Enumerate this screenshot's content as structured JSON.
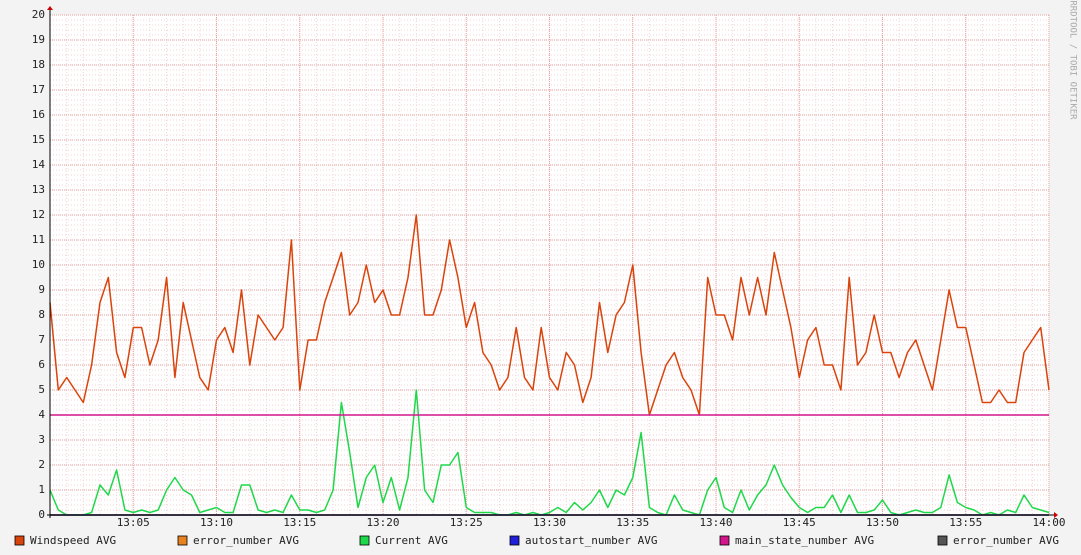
{
  "chart_data": {
    "type": "line",
    "watermark": "RRDTOOL / TOBI OETIKER",
    "xlim": [
      0,
      60
    ],
    "xticks": [
      {
        "value": 5,
        "label": "13:05"
      },
      {
        "value": 10,
        "label": "13:10"
      },
      {
        "value": 15,
        "label": "13:15"
      },
      {
        "value": 20,
        "label": "13:20"
      },
      {
        "value": 25,
        "label": "13:25"
      },
      {
        "value": 30,
        "label": "13:30"
      },
      {
        "value": 35,
        "label": "13:35"
      },
      {
        "value": 40,
        "label": "13:40"
      },
      {
        "value": 45,
        "label": "13:45"
      },
      {
        "value": 50,
        "label": "13:50"
      },
      {
        "value": 55,
        "label": "13:55"
      },
      {
        "value": 60,
        "label": "14:00"
      }
    ],
    "ylim": [
      0,
      20
    ],
    "yticks": [
      0,
      1,
      2,
      3,
      4,
      5,
      6,
      7,
      8,
      9,
      10,
      11,
      12,
      13,
      14,
      15,
      16,
      17,
      18,
      19,
      20
    ],
    "grid": true,
    "x": [
      0,
      0.5,
      1,
      1.5,
      2,
      2.5,
      3,
      3.5,
      4,
      4.5,
      5,
      5.5,
      6,
      6.5,
      7,
      7.5,
      8,
      8.5,
      9,
      9.5,
      10,
      10.5,
      11,
      11.5,
      12,
      12.5,
      13,
      13.5,
      14,
      14.5,
      15,
      15.5,
      16,
      16.5,
      17,
      17.5,
      18,
      18.5,
      19,
      19.5,
      20,
      20.5,
      21,
      21.5,
      22,
      22.5,
      23,
      23.5,
      24,
      24.5,
      25,
      25.5,
      26,
      26.5,
      27,
      27.5,
      28,
      28.5,
      29,
      29.5,
      30,
      30.5,
      31,
      31.5,
      32,
      32.5,
      33,
      33.5,
      34,
      34.5,
      35,
      35.5,
      36,
      36.5,
      37,
      37.5,
      38,
      38.5,
      39,
      39.5,
      40,
      40.5,
      41,
      41.5,
      42,
      42.5,
      43,
      43.5,
      44,
      44.5,
      45,
      45.5,
      46,
      46.5,
      47,
      47.5,
      48,
      48.5,
      49,
      49.5,
      50,
      50.5,
      51,
      51.5,
      52,
      52.5,
      53,
      53.5,
      54,
      54.5,
      55,
      55.5,
      56,
      56.5,
      57,
      57.5,
      58,
      58.5,
      59,
      59.5,
      60
    ],
    "series": [
      {
        "name": "Windspeed AVG",
        "color": "#d9440c",
        "values": [
          8.5,
          5,
          5.5,
          5,
          4.5,
          6,
          8.5,
          9.5,
          6.5,
          5.5,
          7.5,
          7.5,
          6,
          7,
          9.5,
          5.5,
          8.5,
          7,
          5.5,
          5,
          7,
          7.5,
          6.5,
          9,
          6,
          8,
          7.5,
          7,
          7.5,
          11,
          5,
          7,
          7,
          8.5,
          9.5,
          10.5,
          8,
          8.5,
          10,
          8.5,
          9,
          8,
          8,
          9.5,
          12,
          8,
          8,
          9,
          11,
          9.5,
          7.5,
          8.5,
          6.5,
          6,
          5,
          5.5,
          7.5,
          5.5,
          5,
          7.5,
          5.5,
          5,
          6.5,
          6,
          4.5,
          5.5,
          8.5,
          6.5,
          8,
          8.5,
          10,
          6.5,
          4,
          5,
          6,
          6.5,
          5.5,
          5,
          4,
          9.5,
          8,
          8,
          7,
          9.5,
          8,
          9.5,
          8,
          10.5,
          9,
          7.5,
          5.5,
          7,
          7.5,
          6,
          6,
          5,
          9.5,
          6,
          6.5,
          8,
          6.5,
          6.5,
          5.5,
          6.5,
          7,
          6,
          5,
          7,
          9,
          7.5,
          7.5,
          6,
          4.5,
          4.5,
          5,
          4.5,
          4.5,
          6.5,
          7,
          7.5,
          5
        ]
      },
      {
        "name": "error_number AVG",
        "color": "#e8821e",
        "values": [
          0,
          0,
          0,
          0,
          0,
          0,
          0,
          0,
          0,
          0,
          0,
          0,
          0,
          0,
          0,
          0,
          0,
          0,
          0,
          0,
          0,
          0,
          0,
          0,
          0,
          0,
          0,
          0,
          0,
          0,
          0,
          0,
          0,
          0,
          0,
          0,
          0,
          0,
          0,
          0,
          0,
          0,
          0,
          0,
          0,
          0,
          0,
          0,
          0,
          0,
          0,
          0,
          0,
          0,
          0,
          0,
          0,
          0,
          0,
          0,
          0,
          0,
          0,
          0,
          0,
          0,
          0,
          0,
          0,
          0,
          0,
          0,
          0,
          0,
          0,
          0,
          0,
          0,
          0,
          0,
          0,
          0,
          0,
          0,
          0,
          0,
          0,
          0,
          0,
          0,
          0,
          0,
          0,
          0,
          0,
          0,
          0,
          0,
          0,
          0,
          0,
          0,
          0,
          0,
          0,
          0,
          0,
          0,
          0,
          0,
          0,
          0,
          0,
          0,
          0,
          0,
          0,
          0,
          0,
          0,
          0
        ]
      },
      {
        "name": "Current AVG",
        "color": "#1fd84a",
        "values": [
          1,
          0.2,
          0,
          0,
          0,
          0.1,
          1.2,
          0.8,
          1.8,
          0.2,
          0.1,
          0.2,
          0.1,
          0.2,
          1,
          1.5,
          1,
          0.8,
          0.1,
          0.2,
          0.3,
          0.1,
          0.1,
          1.2,
          1.2,
          0.2,
          0.1,
          0.2,
          0.1,
          0.8,
          0.2,
          0.2,
          0.1,
          0.2,
          1,
          4.5,
          2.5,
          0.3,
          1.5,
          2,
          0.5,
          1.5,
          0.2,
          1.5,
          5,
          1,
          0.5,
          2,
          2,
          2.5,
          0.3,
          0.1,
          0.1,
          0.1,
          0,
          0,
          0.1,
          0,
          0.1,
          0,
          0.1,
          0.3,
          0.1,
          0.5,
          0.2,
          0.5,
          1,
          0.3,
          1,
          0.8,
          1.5,
          3.3,
          0.3,
          0.1,
          0,
          0.8,
          0.2,
          0.1,
          0,
          1,
          1.5,
          0.3,
          0.1,
          1,
          0.2,
          0.8,
          1.2,
          2,
          1.2,
          0.7,
          0.3,
          0.1,
          0.3,
          0.3,
          0.8,
          0.1,
          0.8,
          0.1,
          0.1,
          0.2,
          0.6,
          0.1,
          0,
          0.1,
          0.2,
          0.1,
          0.1,
          0.3,
          1.6,
          0.5,
          0.3,
          0.2,
          0,
          0.1,
          0,
          0.2,
          0.1,
          0.8,
          0.3,
          0.2,
          0.1
        ]
      },
      {
        "name": "autostart_number AVG",
        "color": "#2020d8",
        "values": [
          0,
          0,
          0,
          0,
          0,
          0,
          0,
          0,
          0,
          0,
          0,
          0,
          0,
          0,
          0,
          0,
          0,
          0,
          0,
          0,
          0,
          0,
          0,
          0,
          0,
          0,
          0,
          0,
          0,
          0,
          0,
          0,
          0,
          0,
          0,
          0,
          0,
          0,
          0,
          0,
          0,
          0,
          0,
          0,
          0,
          0,
          0,
          0,
          0,
          0,
          0,
          0,
          0,
          0,
          0,
          0,
          0,
          0,
          0,
          0,
          0,
          0,
          0,
          0,
          0,
          0,
          0,
          0,
          0,
          0,
          0,
          0,
          0,
          0,
          0,
          0,
          0,
          0,
          0,
          0,
          0,
          0,
          0,
          0,
          0,
          0,
          0,
          0,
          0,
          0,
          0,
          0,
          0,
          0,
          0,
          0,
          0,
          0,
          0,
          0,
          0,
          0,
          0,
          0,
          0,
          0,
          0,
          0,
          0,
          0,
          0,
          0,
          0,
          0,
          0,
          0,
          0,
          0,
          0,
          0,
          0
        ]
      },
      {
        "name": "main_state_number AVG",
        "color": "#d4168c",
        "values": [
          4,
          4,
          4,
          4,
          4,
          4,
          4,
          4,
          4,
          4,
          4,
          4,
          4,
          4,
          4,
          4,
          4,
          4,
          4,
          4,
          4,
          4,
          4,
          4,
          4,
          4,
          4,
          4,
          4,
          4,
          4,
          4,
          4,
          4,
          4,
          4,
          4,
          4,
          4,
          4,
          4,
          4,
          4,
          4,
          4,
          4,
          4,
          4,
          4,
          4,
          4,
          4,
          4,
          4,
          4,
          4,
          4,
          4,
          4,
          4,
          4,
          4,
          4,
          4,
          4,
          4,
          4,
          4,
          4,
          4,
          4,
          4,
          4,
          4,
          4,
          4,
          4,
          4,
          4,
          4,
          4,
          4,
          4,
          4,
          4,
          4,
          4,
          4,
          4,
          4,
          4,
          4,
          4,
          4,
          4,
          4,
          4,
          4,
          4,
          4,
          4,
          4,
          4,
          4,
          4,
          4,
          4,
          4,
          4,
          4,
          4,
          4,
          4,
          4,
          4,
          4,
          4,
          4,
          4,
          4,
          4
        ]
      },
      {
        "name": "error_number AVG",
        "color": "#555555",
        "values": [
          0,
          0,
          0,
          0,
          0,
          0,
          0,
          0,
          0,
          0,
          0,
          0,
          0,
          0,
          0,
          0,
          0,
          0,
          0,
          0,
          0,
          0,
          0,
          0,
          0,
          0,
          0,
          0,
          0,
          0,
          0,
          0,
          0,
          0,
          0,
          0,
          0,
          0,
          0,
          0,
          0,
          0,
          0,
          0,
          0,
          0,
          0,
          0,
          0,
          0,
          0,
          0,
          0,
          0,
          0,
          0,
          0,
          0,
          0,
          0,
          0,
          0,
          0,
          0,
          0,
          0,
          0,
          0,
          0,
          0,
          0,
          0,
          0,
          0,
          0,
          0,
          0,
          0,
          0,
          0,
          0,
          0,
          0,
          0,
          0,
          0,
          0,
          0,
          0,
          0,
          0,
          0,
          0,
          0,
          0,
          0,
          0,
          0,
          0,
          0,
          0,
          0,
          0,
          0,
          0,
          0,
          0,
          0,
          0,
          0,
          0,
          0,
          0,
          0,
          0,
          0,
          0,
          0,
          0,
          0,
          0
        ]
      }
    ]
  }
}
